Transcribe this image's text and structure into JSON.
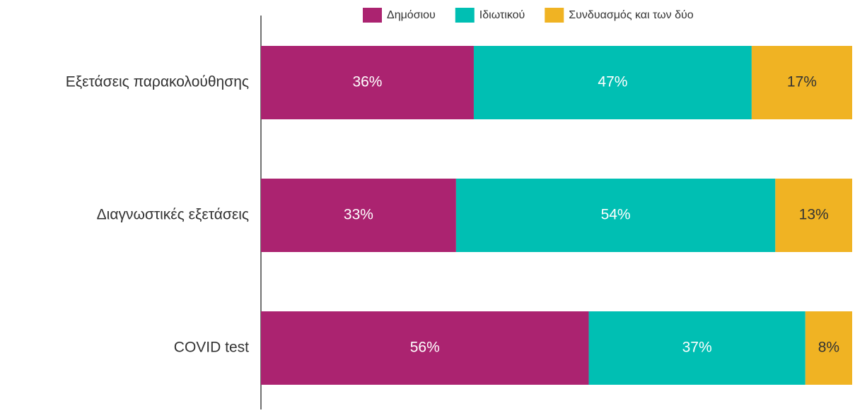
{
  "chart_data": {
    "type": "stacked_barh",
    "categories": [
      "Εξετάσεις παρακολούθησης",
      "Διαγνωστικές εξετάσεις",
      "COVID test"
    ],
    "series": [
      {
        "name": "Δημόσιου",
        "color": "#ab2370",
        "values": [
          36,
          33,
          56
        ],
        "value_labels": [
          "36%",
          "33%",
          "56%"
        ],
        "label_color": "#ffffff"
      },
      {
        "name": "Ιδιωτικού",
        "color": "#00bfb3",
        "values": [
          47,
          54,
          37
        ],
        "value_labels": [
          "47%",
          "54%",
          "37%"
        ],
        "label_color": "#ffffff"
      },
      {
        "name": "Συνδυασμός και των δύο",
        "color": "#f0b323",
        "values": [
          17,
          13,
          8
        ],
        "value_labels": [
          "17%",
          "13%",
          "8%"
        ],
        "label_color": "#333333"
      }
    ],
    "legend": "top"
  }
}
